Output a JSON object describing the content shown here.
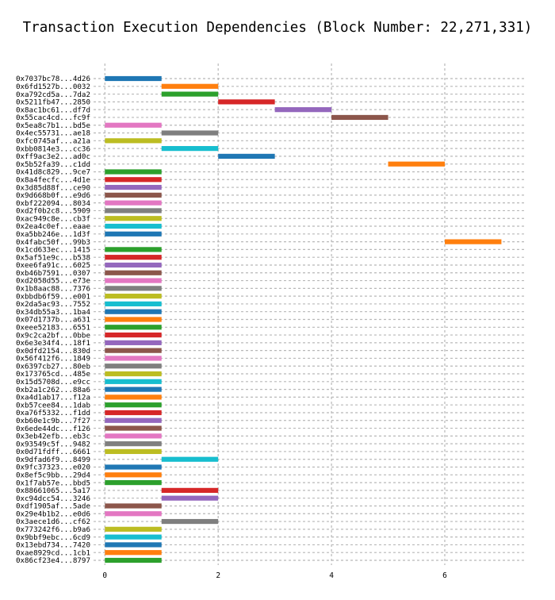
{
  "chart_data": {
    "type": "bar",
    "orientation": "horizontal-gantt",
    "title": "Transaction Execution Dependencies (Block Number: 22,271,331)",
    "xlabel": "",
    "ylabel": "",
    "xlim": [
      -0.2,
      7.4
    ],
    "xticks": [
      0,
      2,
      4,
      6
    ],
    "grid": true,
    "palette": [
      "#1f77b4",
      "#ff7f0e",
      "#2ca02c",
      "#d62728",
      "#9467bd",
      "#8c564b",
      "#e377c2",
      "#7f7f7f",
      "#bcbd22",
      "#17becf"
    ],
    "tasks": [
      {
        "label": "0x7037bc78...4d26",
        "start": 0,
        "end": 1
      },
      {
        "label": "0x6fd1527b...0032",
        "start": 1,
        "end": 2
      },
      {
        "label": "0xa792cd5a...7da2",
        "start": 1,
        "end": 2
      },
      {
        "label": "0x5211fb47...2850",
        "start": 2,
        "end": 3
      },
      {
        "label": "0x8ac1bc61...df7d",
        "start": 3,
        "end": 4
      },
      {
        "label": "0x55cac4cd...fc9f",
        "start": 4,
        "end": 5
      },
      {
        "label": "0x5ea8c7b1...bd5e",
        "start": 0,
        "end": 1
      },
      {
        "label": "0x4ec55731...ae18",
        "start": 1,
        "end": 2
      },
      {
        "label": "0xfc0745af...a21a",
        "start": 0,
        "end": 1
      },
      {
        "label": "0xbb0814e3...cc36",
        "start": 1,
        "end": 2
      },
      {
        "label": "0xff9ac3e2...ad0c",
        "start": 2,
        "end": 3
      },
      {
        "label": "0x5b52fa39...c1dd",
        "start": 5,
        "end": 6
      },
      {
        "label": "0x41d8c829...9ce7",
        "start": 0,
        "end": 1
      },
      {
        "label": "0x8a4fecfc...4d1e",
        "start": 0,
        "end": 1
      },
      {
        "label": "0x3d85d88f...ce90",
        "start": 0,
        "end": 1
      },
      {
        "label": "0x9d668b0f...e9d6",
        "start": 0,
        "end": 1
      },
      {
        "label": "0xbf222094...8034",
        "start": 0,
        "end": 1
      },
      {
        "label": "0xd2f0b2c8...5909",
        "start": 0,
        "end": 1
      },
      {
        "label": "0xac949c8e...cb3f",
        "start": 0,
        "end": 1
      },
      {
        "label": "0x2ea4c0ef...eaae",
        "start": 0,
        "end": 1
      },
      {
        "label": "0xa5bb246e...1d3f",
        "start": 0,
        "end": 1
      },
      {
        "label": "0x4fabc50f...99b3",
        "start": 6,
        "end": 7
      },
      {
        "label": "0x1cd633ec...1415",
        "start": 0,
        "end": 1
      },
      {
        "label": "0x5af51e9c...b538",
        "start": 0,
        "end": 1
      },
      {
        "label": "0xee6fa91c...6025",
        "start": 0,
        "end": 1
      },
      {
        "label": "0xb46b7591...0307",
        "start": 0,
        "end": 1
      },
      {
        "label": "0xd2058d55...e73e",
        "start": 0,
        "end": 1
      },
      {
        "label": "0x1b8aac88...7376",
        "start": 0,
        "end": 1
      },
      {
        "label": "0xbbdb6f59...e001",
        "start": 0,
        "end": 1
      },
      {
        "label": "0x2da5ac93...7552",
        "start": 0,
        "end": 1
      },
      {
        "label": "0x34db55a3...1ba4",
        "start": 0,
        "end": 1
      },
      {
        "label": "0x07d1737b...a631",
        "start": 0,
        "end": 1
      },
      {
        "label": "0xeee52183...6551",
        "start": 0,
        "end": 1
      },
      {
        "label": "0x9c2ca2bf...0bbe",
        "start": 0,
        "end": 1
      },
      {
        "label": "0x6e3e34f4...18f1",
        "start": 0,
        "end": 1
      },
      {
        "label": "0x0dfd2154...830d",
        "start": 0,
        "end": 1
      },
      {
        "label": "0x56f412f6...1849",
        "start": 0,
        "end": 1
      },
      {
        "label": "0x6397cb27...80eb",
        "start": 0,
        "end": 1
      },
      {
        "label": "0x173765cd...485e",
        "start": 0,
        "end": 1
      },
      {
        "label": "0x15d5708d...e9cc",
        "start": 0,
        "end": 1
      },
      {
        "label": "0xb2a1c262...88a6",
        "start": 0,
        "end": 1
      },
      {
        "label": "0xa4d1ab17...f12a",
        "start": 0,
        "end": 1
      },
      {
        "label": "0xb57cee84...1dab",
        "start": 0,
        "end": 1
      },
      {
        "label": "0xa76f5332...f1dd",
        "start": 0,
        "end": 1
      },
      {
        "label": "0xb60e1c9b...7f27",
        "start": 0,
        "end": 1
      },
      {
        "label": "0x6ede44dc...f126",
        "start": 0,
        "end": 1
      },
      {
        "label": "0x3eb42efb...eb3c",
        "start": 0,
        "end": 1
      },
      {
        "label": "0x93549c5f...9482",
        "start": 0,
        "end": 1
      },
      {
        "label": "0x0d71fdff...6661",
        "start": 0,
        "end": 1
      },
      {
        "label": "0x9dfad6f9...8499",
        "start": 1,
        "end": 2
      },
      {
        "label": "0x9fc37323...e020",
        "start": 0,
        "end": 1
      },
      {
        "label": "0x8ef5c9bb...29d4",
        "start": 0,
        "end": 1
      },
      {
        "label": "0x1f7ab57e...bbd5",
        "start": 0,
        "end": 1
      },
      {
        "label": "0x88661065...5a17",
        "start": 1,
        "end": 2
      },
      {
        "label": "0xc94dcc54...3246",
        "start": 1,
        "end": 2
      },
      {
        "label": "0xdf1905af...5ade",
        "start": 0,
        "end": 1
      },
      {
        "label": "0x29e4b1b2...e0d6",
        "start": 0,
        "end": 1
      },
      {
        "label": "0x3aece1d6...cf62",
        "start": 1,
        "end": 2
      },
      {
        "label": "0x773242f6...b9a6",
        "start": 0,
        "end": 1
      },
      {
        "label": "0x9bbf9ebc...6cd9",
        "start": 0,
        "end": 1
      },
      {
        "label": "0x13ebd734...7420",
        "start": 0,
        "end": 1
      },
      {
        "label": "0xae8929cd...1cb1",
        "start": 0,
        "end": 1
      },
      {
        "label": "0x86cf23e4...8797",
        "start": 0,
        "end": 1
      }
    ]
  }
}
